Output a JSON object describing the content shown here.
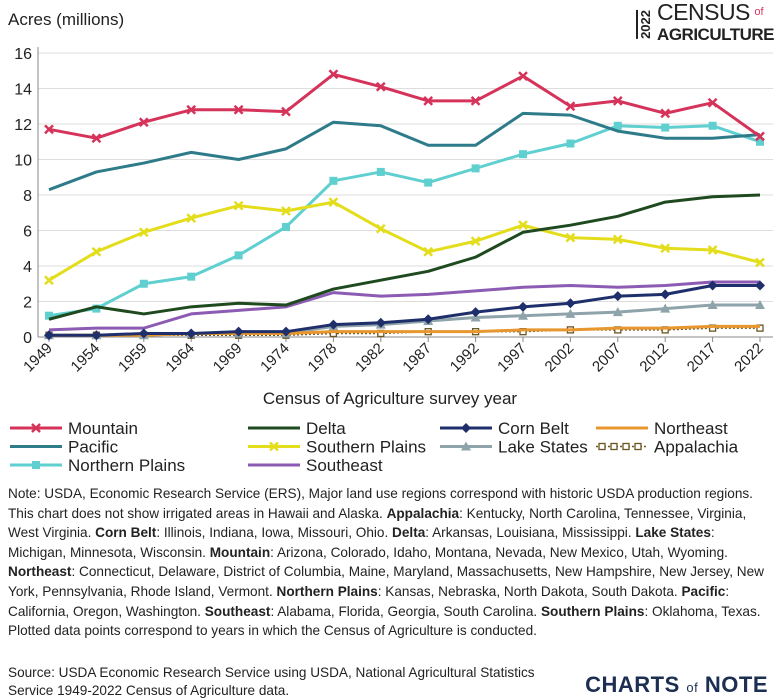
{
  "chart_data": {
    "type": "line",
    "y_label": "Acres (millions)",
    "x_label": "Census of Agriculture survey year",
    "categories": [
      "1949",
      "1954",
      "1959",
      "1964",
      "1969",
      "1974",
      "1978",
      "1982",
      "1987",
      "1992",
      "1997",
      "2002",
      "2007",
      "2012",
      "2017",
      "2022"
    ],
    "ylim": [
      0,
      16
    ],
    "yticks": [
      0,
      2,
      4,
      6,
      8,
      10,
      12,
      14,
      16
    ],
    "grid": true,
    "series": [
      {
        "name": "Mountain",
        "color": "#d6335a",
        "marker": "x",
        "values": [
          11.7,
          11.2,
          12.1,
          12.8,
          12.8,
          12.7,
          14.8,
          14.1,
          13.3,
          13.3,
          14.7,
          13.0,
          13.3,
          12.6,
          13.2,
          11.3
        ]
      },
      {
        "name": "Delta",
        "color": "#1f4a1f",
        "marker": "none",
        "values": [
          1.0,
          1.7,
          1.3,
          1.7,
          1.9,
          1.8,
          2.7,
          3.2,
          3.7,
          4.5,
          5.9,
          6.3,
          6.8,
          7.6,
          7.9,
          8.0
        ]
      },
      {
        "name": "Corn Belt",
        "color": "#1e2f6b",
        "marker": "diamond",
        "values": [
          0.1,
          0.1,
          0.2,
          0.2,
          0.3,
          0.3,
          0.7,
          0.8,
          1.0,
          1.4,
          1.7,
          1.9,
          2.3,
          2.4,
          2.9,
          2.9
        ]
      },
      {
        "name": "Northeast",
        "color": "#e8962e",
        "marker": "none",
        "values": [
          0.1,
          0.1,
          0.1,
          0.2,
          0.2,
          0.2,
          0.3,
          0.3,
          0.3,
          0.3,
          0.4,
          0.4,
          0.5,
          0.5,
          0.6,
          0.6
        ]
      },
      {
        "name": "Pacific",
        "color": "#2e7c8a",
        "marker": "none",
        "values": [
          8.3,
          9.3,
          9.8,
          10.4,
          10.0,
          10.6,
          12.1,
          11.9,
          10.8,
          10.8,
          12.6,
          12.5,
          11.6,
          11.2,
          11.2,
          11.4
        ]
      },
      {
        "name": "Southern Plains",
        "color": "#e3dd1c",
        "marker": "x",
        "values": [
          3.2,
          4.8,
          5.9,
          6.7,
          7.4,
          7.1,
          7.6,
          6.1,
          4.8,
          5.4,
          6.3,
          5.6,
          5.5,
          5.0,
          4.9,
          4.2
        ]
      },
      {
        "name": "Lake States",
        "color": "#8fa3ab",
        "marker": "triangle",
        "values": [
          0.1,
          0.1,
          0.1,
          0.2,
          0.2,
          0.2,
          0.6,
          0.7,
          0.9,
          1.1,
          1.2,
          1.3,
          1.4,
          1.6,
          1.8,
          1.8
        ]
      },
      {
        "name": "Appalachia",
        "color": "#6b5420",
        "marker": "hollow-square",
        "values": [
          0.1,
          0.1,
          0.1,
          0.1,
          0.1,
          0.1,
          0.2,
          0.2,
          0.3,
          0.3,
          0.3,
          0.4,
          0.4,
          0.4,
          0.5,
          0.5
        ]
      },
      {
        "name": "Northern Plains",
        "color": "#5fcfd0",
        "marker": "square",
        "values": [
          1.2,
          1.6,
          3.0,
          3.4,
          4.6,
          6.2,
          8.8,
          9.3,
          8.7,
          9.5,
          10.3,
          10.9,
          11.9,
          11.8,
          11.9,
          11.0
        ]
      },
      {
        "name": "Southeast",
        "color": "#8c5bb3",
        "marker": "none",
        "values": [
          0.4,
          0.5,
          0.5,
          1.3,
          1.5,
          1.7,
          2.5,
          2.3,
          2.4,
          2.6,
          2.8,
          2.9,
          2.8,
          2.9,
          3.1,
          3.1
        ]
      }
    ]
  },
  "logo": {
    "year": "2022",
    "line1": "CENSUS",
    "of": "of",
    "line2": "AGRICULTURE"
  },
  "note": [
    {
      "text": "Note: USDA, Economic Research Service (ERS), Major land use regions correspond with historic USDA production regions. This chart does not show irrigated areas in Hawaii and Alaska. ",
      "bold": false
    },
    {
      "text": "Appalachia",
      "bold": true
    },
    {
      "text": ": Kentucky, North Carolina, Tennessee, Virginia, West Virginia. ",
      "bold": false
    },
    {
      "text": "Corn Belt",
      "bold": true
    },
    {
      "text": ": Illinois, Indiana, Iowa, Missouri, Ohio. ",
      "bold": false
    },
    {
      "text": "Delta",
      "bold": true
    },
    {
      "text": ": Arkansas, Louisiana, Mississippi. ",
      "bold": false
    },
    {
      "text": "Lake States",
      "bold": true
    },
    {
      "text": ": Michigan, Minnesota, Wisconsin. ",
      "bold": false
    },
    {
      "text": "Mountain",
      "bold": true
    },
    {
      "text": ": Arizona, Colorado, Idaho, Montana, Nevada, New Mexico, Utah, Wyoming. ",
      "bold": false
    },
    {
      "text": "Northeast",
      "bold": true
    },
    {
      "text": ": Connecticut, Delaware, District of Columbia, Maine, Maryland, Massachusetts, New Hampshire, New Jersey, New York, Pennsylvania, Rhode Island, Vermont. ",
      "bold": false
    },
    {
      "text": "Northern Plains",
      "bold": true
    },
    {
      "text": ": Kansas, Nebraska, North Dakota, South Dakota. ",
      "bold": false
    },
    {
      "text": "Pacific",
      "bold": true
    },
    {
      "text": ": California, Oregon, Washington. ",
      "bold": false
    },
    {
      "text": "Southeast",
      "bold": true
    },
    {
      "text": ": Alabama, Florida, Georgia, South Carolina. ",
      "bold": false
    },
    {
      "text": "Southern Plains",
      "bold": true
    },
    {
      "text": ": Oklahoma, Texas. Plotted data points correspond to years in which the Census of Agriculture is conducted.",
      "bold": false
    }
  ],
  "source": "Source: USDA Economic Research Service using USDA, National Agricultural Statistics Service 1949-2022 Census of Agriculture data.",
  "brand": {
    "left": "CHARTS",
    "of": "of",
    "right": "NOTE"
  }
}
